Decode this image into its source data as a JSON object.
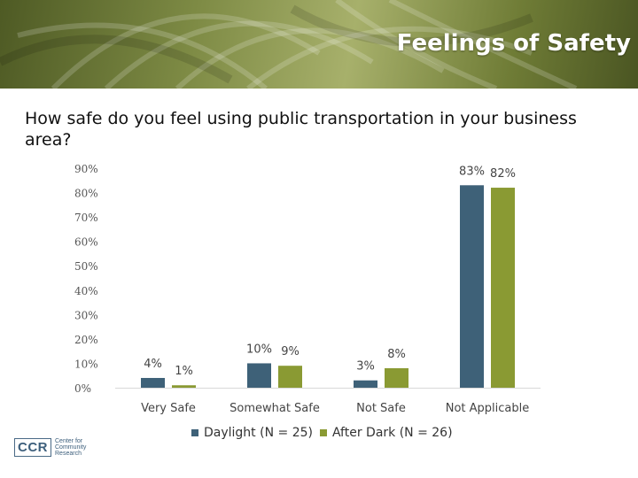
{
  "banner": {
    "title": "Feelings of Safety"
  },
  "question": "How safe do you feel using public transportation in your business area?",
  "logo": {
    "mark": "CCR",
    "lines": [
      "Center for",
      "Community",
      "Research"
    ]
  },
  "colors": {
    "daylight": "#3e6178",
    "after_dark": "#8a9a33",
    "axis": "#d9d9d9"
  },
  "chart_data": {
    "type": "bar",
    "categories": [
      "Very Safe",
      "Somewhat Safe",
      "Not Safe",
      "Not Applicable"
    ],
    "series": [
      {
        "name": "Daylight (N = 25)",
        "values": [
          4,
          10,
          3,
          83
        ],
        "labels": [
          "4%",
          "10%",
          "3%",
          "83%"
        ]
      },
      {
        "name": "After Dark (N = 26)",
        "values": [
          1,
          9,
          8,
          82
        ],
        "labels": [
          "1%",
          "9%",
          "8%",
          "82%"
        ]
      }
    ],
    "yticks": [
      "0%",
      "10%",
      "20%",
      "30%",
      "40%",
      "50%",
      "60%",
      "70%",
      "80%",
      "90%"
    ],
    "ylim": [
      0,
      90
    ],
    "grid": false,
    "legend": "bottom"
  }
}
